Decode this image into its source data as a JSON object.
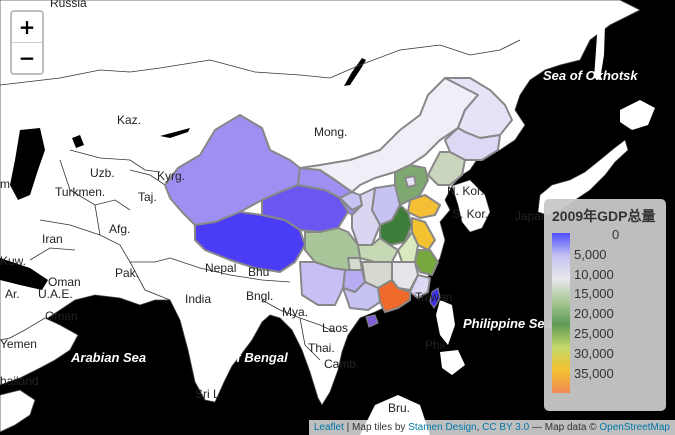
{
  "map": {
    "places": {
      "russia": "Russia",
      "kaz": "Kaz.",
      "mong": "Mong.",
      "uzb": "Uzb.",
      "kyrg": "Kyrg.",
      "turkmen": "Turkmen.",
      "taj": "Taj.",
      "afg": "Afg.",
      "iran": "Iran",
      "pak": "Pak.",
      "nepal": "Nepal",
      "bhu": "Bhu",
      "india": "India",
      "bngl": "Bngl.",
      "mya": "Mya.",
      "laos": "Laos",
      "thai": "Thai.",
      "camb": "Camb.",
      "phil": "Phil.",
      "bru": "Bru.",
      "sril": "Sri L.",
      "nkor": "N. Kor.",
      "skor": "S. Kor.",
      "japan": "Japan",
      "taiwan": "Taiwan",
      "oman1": "Oman",
      "oman2": "Oman",
      "uae": "U.A.E.",
      "kuw": "Kuw.",
      "ar": "Ar.",
      "yemen": "Yemen",
      "thailand": "hailand",
      "m": "m"
    },
    "seas": {
      "okhotsk": "Sea of Okhotsk",
      "philippine": "Philippine Sea",
      "arabian": "Arabian Sea",
      "bengal": "Bay of Bengal"
    }
  },
  "zoom": {
    "in_label": "+",
    "out_label": "−"
  },
  "legend": {
    "title": "2009年GDP总量",
    "labels": [
      "0",
      "5,000",
      "10,000",
      "15,000",
      "20,000",
      "25,000",
      "30,000",
      "35,000"
    ],
    "colors": [
      "#4d4dff",
      "#c6c3f2",
      "#e8e8ee",
      "#a9c895",
      "#5e9a55",
      "#c3d86a",
      "#f2c12f",
      "#f08a55"
    ]
  },
  "attribution": {
    "leaflet": "Leaflet",
    "tiles_prefix": " | Map tiles by ",
    "stamen": "Stamen Design",
    "sep": ", ",
    "ccby": "CC BY 3.0",
    "data_prefix": " — Map data © ",
    "osm": "OpenStreetMap"
  }
}
